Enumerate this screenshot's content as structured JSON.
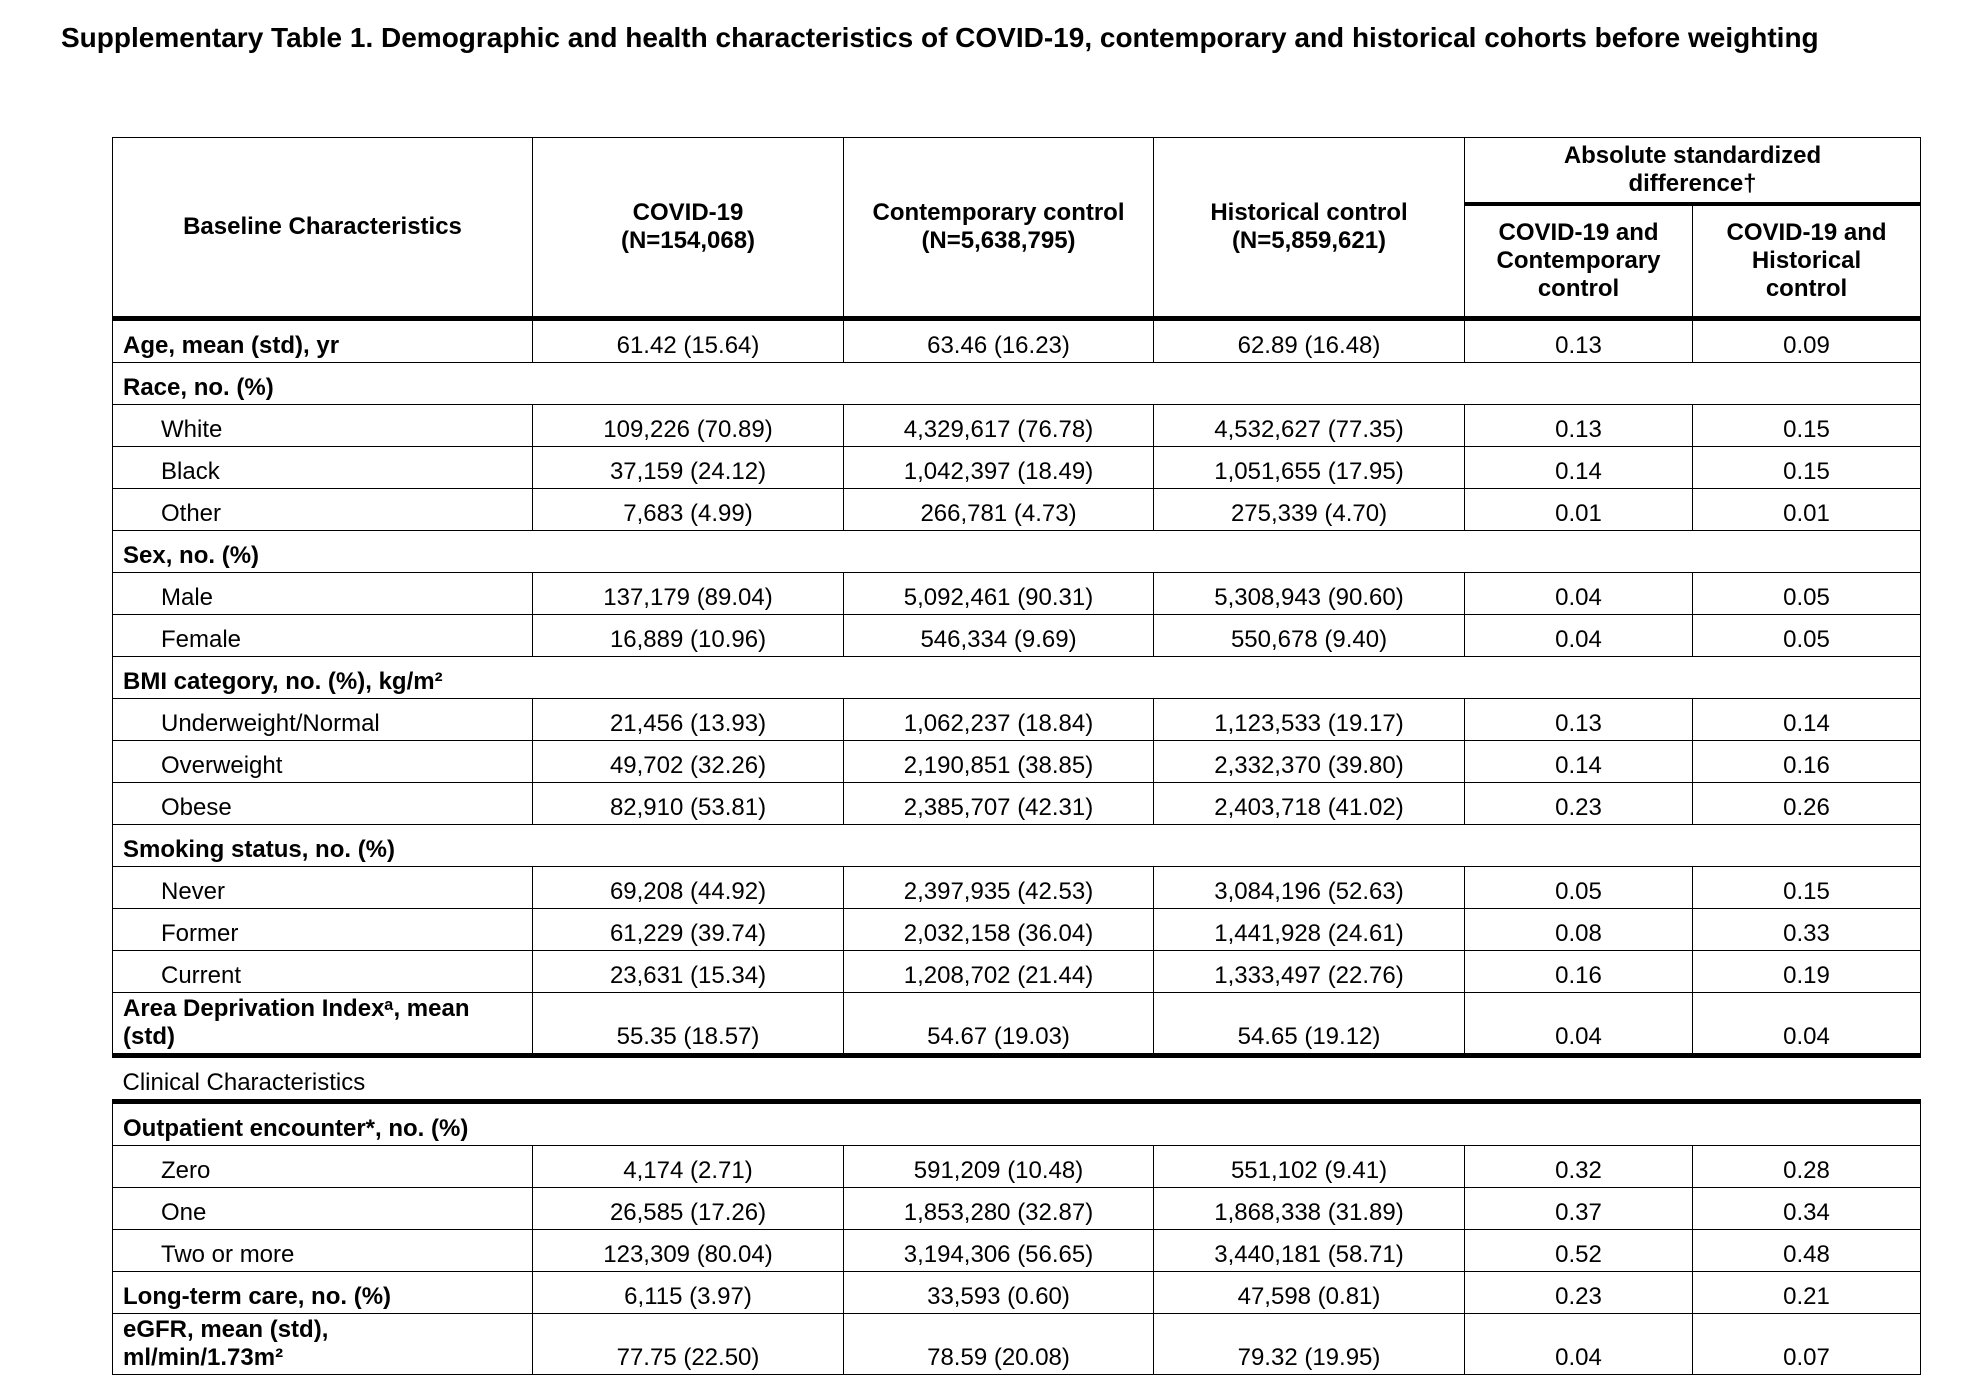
{
  "header": {
    "title": "Supplementary Table 1. Demographic and health characteristics of COVID-19, contemporary and historical cohorts before weighting"
  },
  "table": {
    "stub_header": "Baseline Characteristics",
    "columns": [
      "COVID-19\n(N=154,068)",
      "Contemporary control\n(N=5,638,795)",
      "Historical control\n(N=5,859,621)"
    ],
    "difference_header": "Absolute standardized\ndifference†",
    "difference_columns": [
      "COVID-19 and\nContemporary\ncontrol",
      "COVID-19 and\nHistorical\ncontrol"
    ],
    "baseline": [
      {
        "label": "Age, mean (std), yr",
        "values": [
          "61.42 (15.64)",
          "63.46 (16.23)",
          "62.89 (16.48)",
          "0.13",
          "0.09"
        ]
      },
      {
        "label": "Race, no. (%)",
        "items": [
          {
            "label": "White",
            "values": [
              "109,226 (70.89)",
              "4,329,617 (76.78)",
              "4,532,627 (77.35)",
              "0.13",
              "0.15"
            ]
          },
          {
            "label": "Black",
            "values": [
              "37,159 (24.12)",
              "1,042,397 (18.49)",
              "1,051,655 (17.95)",
              "0.14",
              "0.15"
            ]
          },
          {
            "label": "Other",
            "values": [
              "7,683 (4.99)",
              "266,781 (4.73)",
              "275,339 (4.70)",
              "0.01",
              "0.01"
            ]
          }
        ]
      },
      {
        "label": "Sex, no. (%)",
        "items": [
          {
            "label": "Male",
            "values": [
              "137,179 (89.04)",
              "5,092,461 (90.31)",
              "5,308,943 (90.60)",
              "0.04",
              "0.05"
            ]
          },
          {
            "label": "Female",
            "values": [
              "16,889 (10.96)",
              "546,334 (9.69)",
              "550,678 (9.40)",
              "0.04",
              "0.05"
            ]
          }
        ]
      },
      {
        "label": "BMI category, no. (%), kg/m²",
        "items": [
          {
            "label": "Underweight/Normal",
            "values": [
              "21,456 (13.93)",
              "1,062,237 (18.84)",
              "1,123,533 (19.17)",
              "0.13",
              "0.14"
            ]
          },
          {
            "label": "Overweight",
            "values": [
              "49,702 (32.26)",
              "2,190,851 (38.85)",
              "2,332,370 (39.80)",
              "0.14",
              "0.16"
            ]
          },
          {
            "label": "Obese",
            "values": [
              "82,910 (53.81)",
              "2,385,707 (42.31)",
              "2,403,718 (41.02)",
              "0.23",
              "0.26"
            ]
          }
        ]
      },
      {
        "label": "Smoking status, no. (%)",
        "items": [
          {
            "label": "Never",
            "values": [
              "69,208 (44.92)",
              "2,397,935 (42.53)",
              "3,084,196 (52.63)",
              "0.05",
              "0.15"
            ]
          },
          {
            "label": "Former",
            "values": [
              "61,229 (39.74)",
              "2,032,158 (36.04)",
              "1,441,928 (24.61)",
              "0.08",
              "0.33"
            ]
          },
          {
            "label": "Current",
            "values": [
              "23,631 (15.34)",
              "1,208,702 (21.44)",
              "1,333,497 (22.76)",
              "0.16",
              "0.19"
            ]
          }
        ]
      },
      {
        "label": "Area Deprivation Indexᵃ, mean\n(std)",
        "values": [
          "55.35 (18.57)",
          "54.67 (19.03)",
          "54.65 (19.12)",
          "0.04",
          "0.04"
        ]
      }
    ],
    "clinical_title": "Clinical Characteristics",
    "clinical": [
      {
        "label": "Outpatient encounter*, no. (%)",
        "items": [
          {
            "label": "Zero",
            "values": [
              "4,174 (2.71)",
              "591,209 (10.48)",
              "551,102 (9.41)",
              "0.32",
              "0.28"
            ]
          },
          {
            "label": "One",
            "values": [
              "26,585 (17.26)",
              "1,853,280 (32.87)",
              "1,868,338 (31.89)",
              "0.37",
              "0.34"
            ]
          },
          {
            "label": "Two or more",
            "values": [
              "123,309 (80.04)",
              "3,194,306 (56.65)",
              "3,440,181 (58.71)",
              "0.52",
              "0.48"
            ]
          }
        ]
      },
      {
        "label": "Long-term care, no. (%)",
        "values": [
          "6,115 (3.97)",
          "33,593 (0.60)",
          "47,598 (0.81)",
          "0.23",
          "0.21"
        ]
      },
      {
        "label": "eGFR, mean (std),\nml/min/1.73m²",
        "values": [
          "77.75 (22.50)",
          "78.59 (20.08)",
          "79.32 (19.95)",
          "0.04",
          "0.07"
        ]
      }
    ]
  }
}
